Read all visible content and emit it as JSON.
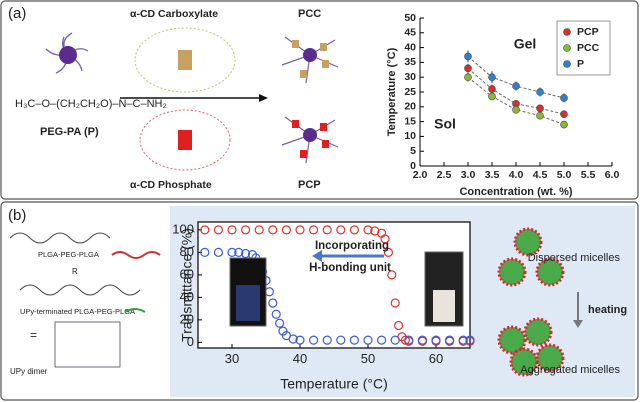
{
  "panel_a": {
    "label": "(a)",
    "carboxylate": "α-CD Carboxylate",
    "pcc": "PCC",
    "polymer": "PEG-PA (P)",
    "phosphate": "α-CD Phosphate",
    "pcp": "PCP"
  },
  "panel_b": {
    "label": "(b)",
    "plga": "PLGA-PEG-PLGA",
    "r": "R",
    "upy_polymer": "UPy-terminated PLGA-PEG-PLGA",
    "upy_dimer": "UPy dimer",
    "equals": "=",
    "dispersed": "Dispersed micelles",
    "heating": "heating",
    "aggregated": "Aggregated micelles"
  },
  "chart_data": [
    {
      "type": "line",
      "x_label": "Concentration (wt. %)",
      "y_label": "Temperature (°C)",
      "annotations": [
        "Gel",
        "Sol"
      ],
      "xlim": [
        2,
        6
      ],
      "ylim": [
        0,
        50
      ],
      "xticks": [
        {
          "value": 2,
          "label": "2.0"
        },
        {
          "value": 2.5,
          "label": "2.5"
        },
        {
          "value": 3,
          "label": "3.0"
        },
        {
          "value": 3.5,
          "label": "3.5"
        },
        {
          "value": 4,
          "label": "4.0"
        },
        {
          "value": 4.5,
          "label": "4.5"
        },
        {
          "value": 5,
          "label": "5.0"
        },
        {
          "value": 5.5,
          "label": "5.5"
        },
        {
          "value": 6,
          "label": "6.0"
        }
      ],
      "yticks": [
        0,
        5,
        10,
        15,
        20,
        25,
        30,
        35,
        40,
        45,
        50
      ],
      "legend": "top-right",
      "x": [
        3,
        3.5,
        4,
        4.5,
        5
      ],
      "series": [
        {
          "name": "PCP",
          "color": "#d9302c",
          "values": [
            33,
            26,
            21,
            19.5,
            17.5
          ],
          "errors": [
            1.5,
            1.5,
            1.2,
            1.2,
            1.2
          ]
        },
        {
          "name": "PCC",
          "color": "#86b83a",
          "values": [
            30,
            23.5,
            19,
            17,
            14
          ],
          "errors": [
            1.5,
            1.2,
            1.2,
            1.2,
            1.2
          ]
        },
        {
          "name": "P",
          "color": "#2f80d1",
          "values": [
            37,
            30,
            27,
            25,
            23
          ],
          "errors": [
            2,
            2,
            1.5,
            1.5,
            1.5
          ]
        }
      ]
    },
    {
      "type": "scatter",
      "x_label": "Temperature (°C)",
      "y_label": "Transmittance (%)",
      "annotations": [
        "Incorporating",
        "H-bonding unit"
      ],
      "xlim": [
        25,
        65
      ],
      "ylim": [
        -5,
        107
      ],
      "xticks": [
        30,
        40,
        50,
        60
      ],
      "yticks": [
        0,
        20,
        40,
        60,
        80,
        100
      ],
      "series": [
        {
          "color": "#e8302a",
          "x": [
            26,
            28,
            30,
            32,
            34,
            36,
            38,
            40,
            42,
            44,
            46,
            48,
            50,
            51,
            52,
            52.5,
            53,
            53.5,
            54,
            54.5,
            55,
            55.5,
            56,
            58,
            60,
            62,
            64,
            65
          ],
          "values": [
            100,
            100,
            100,
            100,
            100,
            100,
            100,
            100,
            100,
            100,
            100,
            100,
            100,
            99,
            97,
            92,
            80,
            60,
            35,
            15,
            5,
            2,
            1,
            1,
            1,
            1,
            1,
            1
          ]
        },
        {
          "color": "#3a5bd9",
          "x": [
            26,
            28,
            30,
            31,
            32,
            33,
            33.5,
            34,
            34.5,
            35,
            35.5,
            36,
            36.5,
            37,
            37.5,
            38,
            39,
            40,
            42,
            44,
            46,
            48,
            50,
            52,
            54,
            56,
            58,
            60,
            62,
            64,
            65
          ],
          "values": [
            80,
            80,
            80,
            80,
            79,
            78,
            75,
            70,
            63,
            55,
            45,
            35,
            25,
            17,
            10,
            6,
            3,
            2,
            2,
            2,
            2,
            2,
            2,
            2,
            2,
            2,
            2,
            2,
            2,
            2,
            2
          ]
        }
      ]
    }
  ]
}
